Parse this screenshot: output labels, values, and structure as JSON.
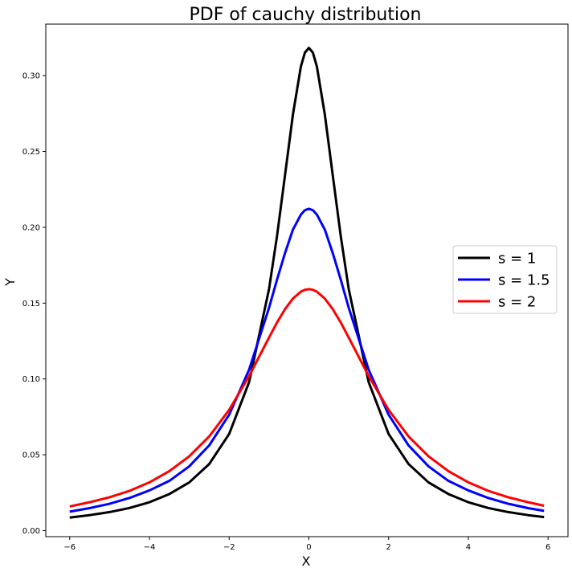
{
  "chart_data": {
    "type": "line",
    "title": "PDF of cauchy distribution",
    "xlabel": "X",
    "ylabel": "Y",
    "xlim": [
      -6.6,
      6.5
    ],
    "ylim": [
      -0.004,
      0.334
    ],
    "xticks": [
      -6,
      -4,
      -2,
      0,
      2,
      4,
      6
    ],
    "xtick_labels": [
      "−6",
      "−4",
      "−2",
      "0",
      "2",
      "4",
      "6"
    ],
    "yticks": [
      0.0,
      0.05,
      0.1,
      0.15,
      0.2,
      0.25,
      0.3
    ],
    "ytick_labels": [
      "0.00",
      "0.05",
      "0.10",
      "0.15",
      "0.20",
      "0.25",
      "0.30"
    ],
    "grid": false,
    "legend_position": "center-right",
    "x": [
      -6.0,
      -5.5,
      -5.0,
      -4.5,
      -4.0,
      -3.5,
      -3.0,
      -2.5,
      -2.0,
      -1.5,
      -1.0,
      -0.8,
      -0.6,
      -0.4,
      -0.2,
      -0.1,
      0.0,
      0.1,
      0.2,
      0.4,
      0.6,
      0.8,
      1.0,
      1.5,
      2.0,
      2.5,
      3.0,
      3.5,
      4.0,
      4.5,
      5.0,
      5.5,
      5.9
    ],
    "series": [
      {
        "name": "s = 1",
        "color": "#000000",
        "values": [
          0.0086,
          0.0102,
          0.0122,
          0.0149,
          0.0187,
          0.0241,
          0.0318,
          0.0439,
          0.0637,
          0.0979,
          0.1592,
          0.1941,
          0.2341,
          0.2744,
          0.3061,
          0.3152,
          0.3183,
          0.3152,
          0.3061,
          0.2744,
          0.2341,
          0.1941,
          0.1592,
          0.0979,
          0.0637,
          0.0439,
          0.0318,
          0.0241,
          0.0187,
          0.0149,
          0.0122,
          0.0102,
          0.0089
        ]
      },
      {
        "name": "s = 1.5",
        "color": "#0000ff",
        "values": [
          0.0125,
          0.0148,
          0.0177,
          0.0215,
          0.0265,
          0.0328,
          0.0424,
          0.0562,
          0.0764,
          0.1061,
          0.1469,
          0.1654,
          0.1829,
          0.1985,
          0.2084,
          0.2113,
          0.2122,
          0.2113,
          0.2084,
          0.1985,
          0.1829,
          0.1654,
          0.1469,
          0.1061,
          0.0764,
          0.0562,
          0.0424,
          0.0328,
          0.0265,
          0.0215,
          0.0177,
          0.0148,
          0.013
        ]
      },
      {
        "name": "s = 2",
        "color": "#ff0000",
        "values": [
          0.0159,
          0.0187,
          0.022,
          0.0262,
          0.0318,
          0.0392,
          0.049,
          0.0621,
          0.0796,
          0.1019,
          0.1273,
          0.1372,
          0.146,
          0.153,
          0.1576,
          0.1588,
          0.1592,
          0.1588,
          0.1576,
          0.153,
          0.146,
          0.1372,
          0.1273,
          0.1019,
          0.0796,
          0.0621,
          0.049,
          0.0392,
          0.0318,
          0.0262,
          0.022,
          0.0187,
          0.0164
        ]
      }
    ]
  }
}
